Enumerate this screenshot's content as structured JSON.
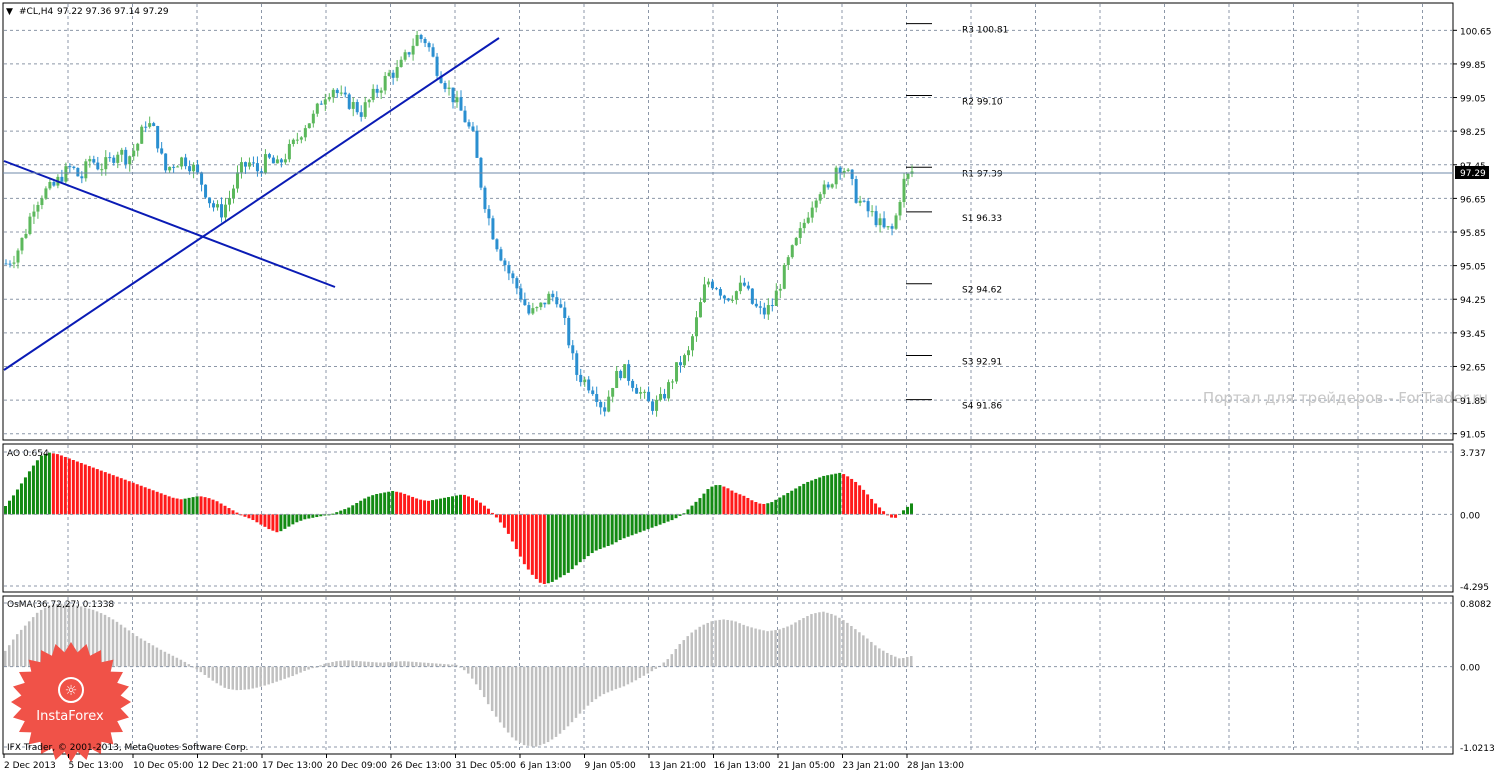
{
  "header": {
    "symbol": "#CL,H4",
    "ohlc": "97.22 97.36 97.14 97.29"
  },
  "price_axis": {
    "ticks": [
      "100.65",
      "99.85",
      "99.05",
      "98.25",
      "97.45",
      "96.65",
      "95.85",
      "95.05",
      "94.25",
      "93.45",
      "92.65",
      "91.85",
      "91.05"
    ],
    "current_price": "97.29"
  },
  "pivots": [
    {
      "label": "R3 100.81",
      "value": 100.81
    },
    {
      "label": "R2 99.10",
      "value": 99.1
    },
    {
      "label": "R1 97.39",
      "value": 97.39
    },
    {
      "label": "S1 96.33",
      "value": 96.33
    },
    {
      "label": "S2 94.62",
      "value": 94.62
    },
    {
      "label": "S3 92.91",
      "value": 92.91
    },
    {
      "label": "S4 91.86",
      "value": 91.86
    }
  ],
  "watermark": "Портал для трейдеров - ForTrader.ru",
  "ao": {
    "label": "AO 0.654",
    "ticks": [
      "3.737",
      "0.00",
      "-4.295"
    ]
  },
  "osma": {
    "label": "OsMA(36,72,27) 0.1338",
    "ticks": [
      "0.8082",
      "0.00",
      "-1.0213"
    ]
  },
  "copyright": "IFX Trader, © 2001-2013, MetaQuotes Software Corp.",
  "logo_text": "InstaForex",
  "time_axis": [
    "2 Dec 2013",
    "5 Dec 13:00",
    "10 Dec 05:00",
    "12 Dec 21:00",
    "17 Dec 13:00",
    "20 Dec 09:00",
    "26 Dec 13:00",
    "31 Dec 05:00",
    "6 Jan 13:00",
    "9 Jan 05:00",
    "13 Jan 21:00",
    "16 Jan 13:00",
    "21 Jan 05:00",
    "23 Jan 21:00",
    "28 Jan 13:00"
  ],
  "colors": {
    "bull": "#5cb85c",
    "bear": "#2a8fd0",
    "ao_up": "#138a13",
    "ao_down": "#ff1a1a",
    "osma": "#c0c0c0",
    "trendline": "#0a1bb5",
    "grid": "#8c97a8"
  },
  "chart_data": {
    "type": "candlestick",
    "price_series": [
      95.1,
      95.3,
      95.8,
      96.5,
      96.8,
      96.9,
      97.2,
      97.4,
      97.1,
      97.6,
      97.4,
      97.5,
      97.8,
      97.6,
      97.9,
      98.5,
      98.2,
      97.3,
      97.5,
      97.6,
      97.4,
      97.0,
      96.5,
      96.3,
      96.7,
      97.3,
      97.5,
      97.3,
      97.6,
      97.4,
      97.7,
      98.0,
      98.4,
      98.6,
      99.1,
      99.3,
      99.0,
      98.9,
      98.7,
      99.0,
      99.3,
      99.6,
      99.7,
      100.1,
      100.5,
      100.4,
      99.8,
      99.4,
      99.0,
      98.6,
      98.1,
      96.8,
      95.9,
      95.3,
      94.8,
      94.4,
      93.9,
      94.0,
      94.3,
      94.3,
      93.5,
      92.5,
      92.3,
      92.1,
      91.6,
      92.3,
      92.6,
      92.3,
      92.0,
      91.7,
      91.8,
      92.2,
      92.7,
      92.9,
      93.8,
      94.7,
      94.6,
      94.3,
      94.4,
      94.6,
      94.1,
      93.9,
      94.1,
      94.7,
      95.3,
      95.8,
      96.4,
      96.9,
      96.8,
      97.5,
      97.3,
      96.7,
      96.4,
      96.2,
      95.9,
      95.9,
      97.0,
      97.29
    ],
    "ao_values": [
      0.5,
      1.2,
      2.0,
      2.8,
      3.5,
      3.7,
      3.6,
      3.4,
      3.2,
      3.0,
      2.8,
      2.6,
      2.4,
      2.2,
      2.0,
      1.8,
      1.6,
      1.4,
      1.2,
      1.0,
      0.9,
      1.0,
      1.1,
      1.0,
      0.8,
      0.5,
      0.2,
      -0.1,
      -0.3,
      -0.6,
      -0.9,
      -1.1,
      -0.8,
      -0.5,
      -0.3,
      -0.2,
      -0.1,
      0.0,
      0.2,
      0.4,
      0.7,
      1.0,
      1.2,
      1.3,
      1.4,
      1.3,
      1.1,
      0.9,
      0.8,
      0.9,
      1.0,
      1.1,
      1.2,
      1.0,
      0.7,
      0.3,
      -0.3,
      -1.0,
      -2.0,
      -3.0,
      -3.7,
      -4.2,
      -4.1,
      -3.8,
      -3.5,
      -3.0,
      -2.6,
      -2.2,
      -2.0,
      -1.8,
      -1.5,
      -1.3,
      -1.1,
      -0.9,
      -0.7,
      -0.5,
      -0.3,
      0.0,
      0.5,
      1.0,
      1.6,
      1.8,
      1.6,
      1.3,
      1.1,
      0.8,
      0.6,
      0.7,
      1.0,
      1.3,
      1.6,
      1.9,
      2.1,
      2.3,
      2.4,
      2.5,
      2.2,
      1.8,
      1.2,
      0.6,
      0.1,
      -0.3,
      0.2,
      0.654
    ],
    "osma_values": [
      0.2,
      0.4,
      0.55,
      0.7,
      0.78,
      0.8,
      0.79,
      0.76,
      0.72,
      0.66,
      0.58,
      0.48,
      0.38,
      0.3,
      0.22,
      0.15,
      0.08,
      0.0,
      -0.1,
      -0.2,
      -0.28,
      -0.3,
      -0.29,
      -0.26,
      -0.22,
      -0.17,
      -0.12,
      -0.06,
      -0.01,
      0.04,
      0.07,
      0.08,
      0.07,
      0.06,
      0.05,
      0.06,
      0.07,
      0.06,
      0.05,
      0.04,
      0.03,
      0.02,
      -0.1,
      -0.3,
      -0.55,
      -0.75,
      -0.92,
      -1.0,
      -1.02,
      -0.97,
      -0.88,
      -0.75,
      -0.6,
      -0.46,
      -0.36,
      -0.3,
      -0.25,
      -0.18,
      -0.1,
      -0.02,
      0.1,
      0.28,
      0.42,
      0.52,
      0.58,
      0.6,
      0.58,
      0.52,
      0.48,
      0.45,
      0.47,
      0.52,
      0.6,
      0.67,
      0.7,
      0.66,
      0.58,
      0.47,
      0.36,
      0.24,
      0.16,
      0.1,
      0.1338
    ]
  }
}
